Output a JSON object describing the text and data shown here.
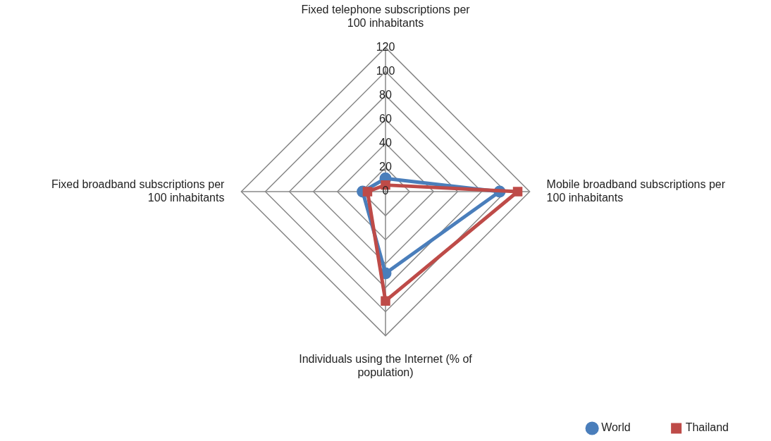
{
  "chart_data": {
    "type": "radar",
    "categories": [
      "Fixed telephone subscriptions per 100 inhabitants",
      "Mobile broadband subscriptions per 100 inhabitants",
      "Individuals using the Internet (% of population)",
      "Fixed broadband subscriptions per 100 inhabitants"
    ],
    "series": [
      {
        "name": "World",
        "color": "#4a7ebb",
        "values": [
          11,
          95,
          68,
          19
        ]
      },
      {
        "name": "Thailand",
        "color": "#be4b48",
        "values": [
          5.5,
          110,
          91,
          15
        ]
      }
    ],
    "ylim": [
      0,
      120
    ],
    "yticks": [
      0,
      20,
      40,
      60,
      80,
      100,
      120
    ],
    "legend": "bottom right",
    "marker": "circle",
    "grid": true
  }
}
